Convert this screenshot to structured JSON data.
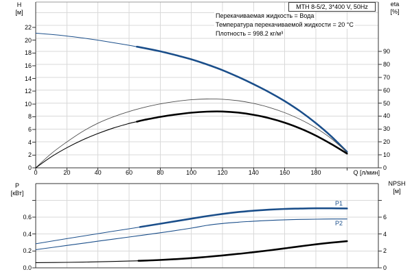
{
  "colors": {
    "curve_blue": "#1a4e8a",
    "curve_black": "#000000",
    "curve_gray": "#4d4d4d",
    "grid": "#d9d9d9",
    "frame": "#333333",
    "frame_top": "#999999",
    "background": "#ffffff"
  },
  "chart_data": [
    {
      "type": "line",
      "title": "MTH 8-5/2, 3*400 V, 50Hz",
      "annotations": [
        "Перекачиваемая жидкость = Вода",
        "Температура перекачиваемой жидкости = 20 °C",
        "Плотность = 998.2 кг/м³"
      ],
      "x": {
        "label": "Q [л/мин]",
        "min": 0,
        "max": 220,
        "tick_step": 20,
        "grid": true,
        "tick_labels": [
          "0",
          "20",
          "40",
          "60",
          "80",
          "100",
          "120",
          "140",
          "160",
          "180"
        ]
      },
      "y_left": {
        "label": "H",
        "unit": "[м]",
        "min": 0,
        "max": 26,
        "ticks": [
          0,
          2,
          4,
          6,
          8,
          10,
          12,
          14,
          16,
          18,
          20,
          22
        ]
      },
      "y_right": {
        "label": "eta",
        "unit": "[%]",
        "min": 0,
        "max": 128,
        "ticks": [
          0,
          10,
          20,
          30,
          40,
          50,
          60,
          70,
          80,
          90
        ],
        "grid_ticks_to": 120
      },
      "series": [
        {
          "name": "H curve",
          "axis": "left",
          "style": "blue",
          "thick_from": 65,
          "points": [
            [
              0,
              21.1
            ],
            [
              10,
              20.9
            ],
            [
              20,
              20.65
            ],
            [
              30,
              20.35
            ],
            [
              40,
              20.0
            ],
            [
              50,
              19.6
            ],
            [
              60,
              19.2
            ],
            [
              70,
              18.75
            ],
            [
              80,
              18.25
            ],
            [
              90,
              17.65
            ],
            [
              100,
              17.0
            ],
            [
              110,
              16.2
            ],
            [
              120,
              15.3
            ],
            [
              130,
              14.25
            ],
            [
              140,
              13.1
            ],
            [
              150,
              11.85
            ],
            [
              160,
              10.45
            ],
            [
              170,
              8.85
            ],
            [
              180,
              7.0
            ],
            [
              190,
              4.9
            ],
            [
              200,
              2.5
            ]
          ]
        },
        {
          "name": "eta pump",
          "axis": "right",
          "style": "thin-black",
          "thick_from": null,
          "points": [
            [
              0,
              0
            ],
            [
              10,
              11
            ],
            [
              20,
              20
            ],
            [
              30,
              28
            ],
            [
              40,
              34.5
            ],
            [
              50,
              39.5
            ],
            [
              60,
              43.5
            ],
            [
              70,
              46.8
            ],
            [
              80,
              49.4
            ],
            [
              90,
              51.3
            ],
            [
              100,
              52.6
            ],
            [
              110,
              53.2
            ],
            [
              120,
              53.0
            ],
            [
              130,
              51.9
            ],
            [
              140,
              49.8
            ],
            [
              150,
              46.7
            ],
            [
              160,
              42.6
            ],
            [
              170,
              37.4
            ],
            [
              180,
              30.8
            ],
            [
              190,
              22.5
            ],
            [
              200,
              12.0
            ]
          ]
        },
        {
          "name": "eta pump+motor",
          "axis": "right",
          "style": "black",
          "thick_from": 65,
          "points": [
            [
              0,
              0
            ],
            [
              10,
              8.5
            ],
            [
              20,
              15.5
            ],
            [
              30,
              21.5
            ],
            [
              40,
              26.5
            ],
            [
              50,
              30.8
            ],
            [
              60,
              34.3
            ],
            [
              70,
              37.1
            ],
            [
              80,
              39.4
            ],
            [
              90,
              41.2
            ],
            [
              100,
              42.6
            ],
            [
              110,
              43.4
            ],
            [
              120,
              43.5
            ],
            [
              130,
              42.7
            ],
            [
              140,
              41.0
            ],
            [
              150,
              38.4
            ],
            [
              160,
              34.9
            ],
            [
              170,
              30.4
            ],
            [
              180,
              24.9
            ],
            [
              190,
              18.3
            ],
            [
              200,
              11.0
            ]
          ]
        }
      ]
    },
    {
      "type": "line",
      "x": {
        "min": 0,
        "max": 220,
        "tick_step": 20,
        "grid": true,
        "tick_labels": []
      },
      "y_left": {
        "label": "P",
        "unit": "[кВт]",
        "min": 0,
        "max": 1.0,
        "ticks": [
          0,
          0.2,
          0.4,
          0.6
        ],
        "tick_labels": [
          "0.0",
          "0.2",
          "0.4",
          "0.6"
        ],
        "grid_ticks_to": 0.8
      },
      "y_right": {
        "label": "NPSH",
        "unit": "[м]",
        "min": 0,
        "max": 10,
        "ticks": [
          0,
          2,
          4,
          6
        ],
        "grid_ticks_to": 8
      },
      "series": [
        {
          "name": "P1",
          "label": "P1",
          "axis": "left",
          "style": "blue",
          "thick_from": 67,
          "points": [
            [
              0,
              0.285
            ],
            [
              20,
              0.345
            ],
            [
              40,
              0.405
            ],
            [
              60,
              0.462
            ],
            [
              80,
              0.522
            ],
            [
              100,
              0.582
            ],
            [
              110,
              0.612
            ],
            [
              120,
              0.638
            ],
            [
              130,
              0.66
            ],
            [
              140,
              0.676
            ],
            [
              150,
              0.688
            ],
            [
              160,
              0.697
            ],
            [
              170,
              0.702
            ],
            [
              180,
              0.705
            ],
            [
              190,
              0.705
            ],
            [
              200,
              0.703
            ]
          ]
        },
        {
          "name": "P2",
          "label": "P2",
          "axis": "left",
          "style": "thin-blue",
          "thick_from": null,
          "points": [
            [
              0,
              0.215
            ],
            [
              20,
              0.265
            ],
            [
              40,
              0.315
            ],
            [
              60,
              0.365
            ],
            [
              80,
              0.415
            ],
            [
              100,
              0.47
            ],
            [
              110,
              0.503
            ],
            [
              120,
              0.525
            ],
            [
              130,
              0.54
            ],
            [
              140,
              0.552
            ],
            [
              150,
              0.561
            ],
            [
              160,
              0.568
            ],
            [
              170,
              0.573
            ],
            [
              180,
              0.576
            ],
            [
              190,
              0.578
            ],
            [
              200,
              0.578
            ]
          ]
        },
        {
          "name": "NPSH",
          "axis": "right",
          "style": "black",
          "thick_from": 66,
          "points": [
            [
              0,
              0.62
            ],
            [
              20,
              0.65
            ],
            [
              40,
              0.71
            ],
            [
              60,
              0.8
            ],
            [
              80,
              0.93
            ],
            [
              100,
              1.15
            ],
            [
              110,
              1.3
            ],
            [
              120,
              1.47
            ],
            [
              130,
              1.65
            ],
            [
              140,
              1.85
            ],
            [
              150,
              2.07
            ],
            [
              160,
              2.3
            ],
            [
              170,
              2.55
            ],
            [
              180,
              2.78
            ],
            [
              190,
              2.98
            ],
            [
              200,
              3.15
            ]
          ]
        }
      ]
    }
  ]
}
